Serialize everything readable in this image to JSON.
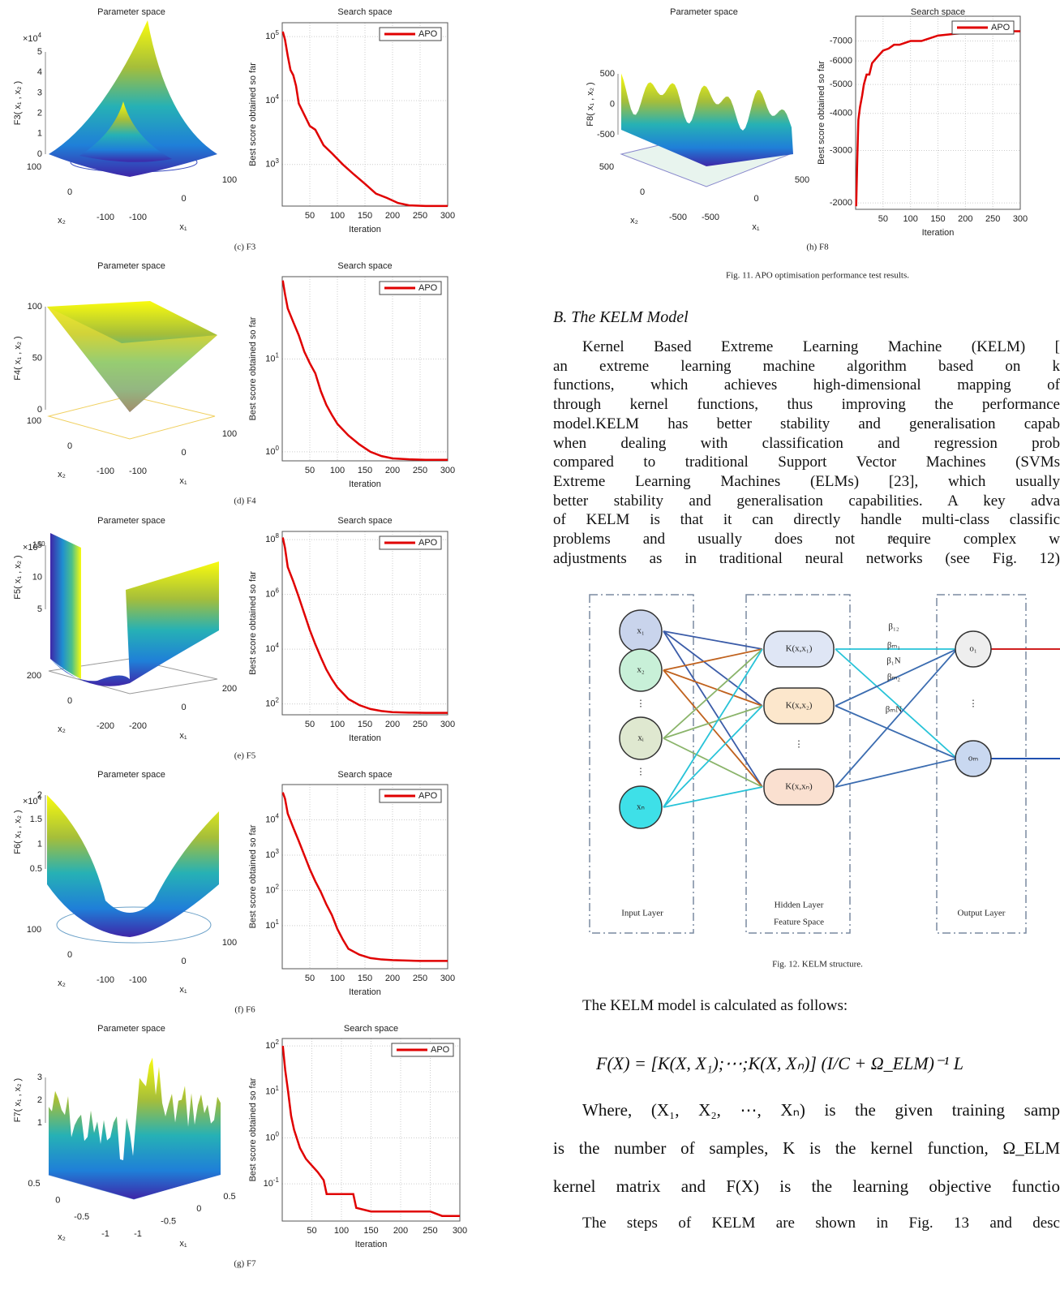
{
  "figures": [
    {
      "caption": "(c) F3",
      "surface": {
        "title": "Parameter space",
        "zlabel": "F3( x₁ , x₂ )",
        "multiplier": "×10^4",
        "zticks": [
          0,
          1,
          2,
          3,
          4,
          5
        ],
        "x1label": "x₁",
        "x2label": "x₂",
        "x1ticks": [
          -100,
          0,
          100
        ],
        "x2ticks": [
          100,
          0,
          -100
        ]
      },
      "chart_data": {
        "type": "line",
        "title": "Search space",
        "xlabel": "Iteration",
        "ylabel": "Best score obtained so far",
        "log_y": true,
        "grid": true,
        "legend": "upper right",
        "xlim": [
          0,
          300
        ],
        "ylim": [
          224,
          165000
        ],
        "xticks": [
          50,
          100,
          150,
          200,
          250,
          300
        ],
        "yticks": [
          {
            "value": 1000,
            "label": "10^3"
          },
          {
            "value": 10000,
            "label": "10^4"
          },
          {
            "value": 100000,
            "label": "10^5"
          }
        ],
        "series": [
          {
            "name": "APO",
            "color": "#e00000",
            "x": [
              1,
              5,
              10,
              15,
              20,
              25,
              30,
              40,
              50,
              60,
              75,
              90,
              110,
              130,
              150,
              170,
              190,
              210,
              230,
              260,
              300
            ],
            "values": [
              120000,
              90000,
              50000,
              30000,
              25000,
              17000,
              9000,
              6000,
              4000,
              3500,
              2000,
              1500,
              1000,
              700,
              500,
              350,
              300,
              250,
              230,
              225,
              225
            ]
          }
        ]
      }
    },
    {
      "caption": "(d) F4",
      "surface": {
        "title": "Parameter space",
        "zlabel": "F4( x₁ , x₂ )",
        "zticks": [
          0,
          50,
          100
        ],
        "x1label": "x₁",
        "x2label": "x₂",
        "x1ticks": [
          -100,
          0,
          100
        ],
        "x2ticks": [
          100,
          0,
          -100
        ]
      },
      "chart_data": {
        "type": "line",
        "title": "Search space",
        "xlabel": "Iteration",
        "ylabel": "Best score obtained so far",
        "log_y": true,
        "grid": true,
        "legend": "upper right",
        "xlim": [
          0,
          300
        ],
        "ylim": [
          0.8,
          77
        ],
        "xticks": [
          50,
          100,
          150,
          200,
          250,
          300
        ],
        "yticks": [
          {
            "value": 1,
            "label": "10^0"
          },
          {
            "value": 10,
            "label": "10^1"
          }
        ],
        "series": [
          {
            "name": "APO",
            "color": "#e00000",
            "x": [
              1,
              5,
              10,
              20,
              30,
              40,
              50,
              60,
              70,
              80,
              90,
              100,
              120,
              140,
              160,
              180,
              200,
              230,
              260,
              300
            ],
            "values": [
              70,
              50,
              35,
              25,
              18,
              12,
              9,
              7,
              4.5,
              3.2,
              2.5,
              2,
              1.5,
              1.2,
              1,
              0.9,
              0.85,
              0.83,
              0.82,
              0.82
            ]
          }
        ]
      }
    },
    {
      "caption": "(e) F5",
      "surface": {
        "title": "Parameter space",
        "zlabel": "F5( x₁ , x₂ )",
        "multiplier": "×10^10",
        "zticks": [
          5,
          10,
          15
        ],
        "x1label": "x₁",
        "x2label": "x₂",
        "x1ticks": [
          -200,
          0,
          200
        ],
        "x2ticks": [
          200,
          0,
          -200
        ]
      },
      "chart_data": {
        "type": "line",
        "title": "Search space",
        "xlabel": "Iteration",
        "ylabel": "Best score obtained so far",
        "log_y": true,
        "grid": true,
        "legend": "upper right",
        "xlim": [
          0,
          300
        ],
        "ylim": [
          40,
          200000000
        ],
        "xticks": [
          50,
          100,
          150,
          200,
          250,
          300
        ],
        "yticks": [
          {
            "value": 100,
            "label": "10^2"
          },
          {
            "value": 10000,
            "label": "10^4"
          },
          {
            "value": 1000000,
            "label": "10^6"
          },
          {
            "value": 100000000,
            "label": "10^8"
          }
        ],
        "series": [
          {
            "name": "APO",
            "color": "#e00000",
            "x": [
              1,
              5,
              10,
              20,
              30,
              40,
              50,
              60,
              70,
              80,
              90,
              100,
              120,
              140,
              160,
              180,
              200,
              230,
              260,
              300
            ],
            "values": [
              120000000,
              50000000,
              10000000,
              3000000,
              800000,
              200000,
              50000,
              15000,
              5000,
              1800,
              800,
              400,
              150,
              90,
              65,
              55,
              50,
              48,
              47,
              47
            ]
          }
        ]
      }
    },
    {
      "caption": "(f) F6",
      "surface": {
        "title": "Parameter space",
        "zlabel": "F6( x₁ , x₂ )",
        "multiplier": "×10^4",
        "zticks": [
          0.5,
          1,
          1.5,
          2
        ],
        "x1label": "x₁",
        "x2label": "x₂",
        "x1ticks": [
          -100,
          0,
          100
        ],
        "x2ticks": [
          100,
          0,
          -100
        ]
      },
      "chart_data": {
        "type": "line",
        "title": "Search space",
        "xlabel": "Iteration",
        "ylabel": "Best score obtained so far",
        "log_y": true,
        "grid": true,
        "legend": "upper right",
        "xlim": [
          0,
          300
        ],
        "ylim": [
          0.6,
          100000
        ],
        "xticks": [
          50,
          100,
          150,
          200,
          250,
          300
        ],
        "yticks": [
          {
            "value": 10,
            "label": "10^1"
          },
          {
            "value": 100,
            "label": "10^2"
          },
          {
            "value": 1000,
            "label": "10^3"
          },
          {
            "value": 10000,
            "label": "10^4"
          }
        ],
        "series": [
          {
            "name": "APO",
            "color": "#e00000",
            "x": [
              1,
              5,
              10,
              20,
              30,
              40,
              50,
              60,
              70,
              80,
              90,
              100,
              110,
              120,
              140,
              160,
              180,
              200,
              250,
              300
            ],
            "values": [
              60000,
              40000,
              15000,
              6000,
              2500,
              1000,
              400,
              180,
              90,
              40,
              20,
              8,
              4,
              2.2,
              1.5,
              1.2,
              1.1,
              1.05,
              1,
              1
            ]
          }
        ]
      }
    },
    {
      "caption": "(g) F7",
      "surface": {
        "title": "Parameter space",
        "zlabel": "F7( x₁ , x₂ )",
        "zticks": [
          1,
          2,
          3
        ],
        "x1label": "x₁",
        "x2label": "x₂",
        "x1ticks": [
          -1,
          -0.5,
          0,
          0.5
        ],
        "x2ticks": [
          0.5,
          0,
          -0.5,
          -1
        ]
      },
      "chart_data": {
        "type": "line",
        "title": "Search space",
        "xlabel": "Iteration",
        "ylabel": "Best score obtained so far",
        "log_y": true,
        "grid": true,
        "legend": "upper right",
        "xlim": [
          0,
          300
        ],
        "ylim": [
          0.0155,
          145
        ],
        "xticks": [
          50,
          100,
          150,
          200,
          250,
          300
        ],
        "yticks": [
          {
            "value": 0.1,
            "label": "10^-1"
          },
          {
            "value": 1,
            "label": "10^0"
          },
          {
            "value": 10,
            "label": "10^1"
          },
          {
            "value": 100,
            "label": "10^2"
          }
        ],
        "series": [
          {
            "name": "APO",
            "color": "#e00000",
            "x": [
              1,
              5,
              10,
              15,
              20,
              30,
              40,
              50,
              60,
              70,
              75,
              100,
              120,
              125,
              150,
              200,
              250,
              270,
              300
            ],
            "values": [
              100,
              30,
              10,
              3,
              1.5,
              0.6,
              0.35,
              0.25,
              0.18,
              0.12,
              0.06,
              0.06,
              0.06,
              0.03,
              0.025,
              0.025,
              0.025,
              0.02,
              0.02
            ]
          }
        ]
      }
    },
    {
      "caption": "(h) F8",
      "surface": {
        "title": "Parameter space",
        "zlabel": "F8( x₁ , x₂ )",
        "zticks": [
          -500,
          0,
          500
        ],
        "x1label": "x₁",
        "x2label": "x₂",
        "x1ticks": [
          -500,
          0,
          500
        ],
        "x2ticks": [
          500,
          0,
          -500
        ]
      },
      "chart_data": {
        "type": "line",
        "title": "Search space",
        "xlabel": "Iteration",
        "ylabel": "Best score obtained so far",
        "log_y": true,
        "grid": true,
        "legend": "upper right",
        "xlim": [
          0,
          300
        ],
        "ylim": [
          -1904,
          -8480
        ],
        "xticks": [
          50,
          100,
          150,
          200,
          250,
          300
        ],
        "yticks": [
          -7000,
          -6000,
          -5000,
          -4000,
          -3000,
          -2000
        ],
        "series": [
          {
            "name": "APO",
            "color": "#e00000",
            "x": [
              1,
              3,
              5,
              8,
              12,
              15,
              20,
              25,
              30,
              40,
              50,
              60,
              70,
              80,
              100,
              120,
              150,
              180,
              220,
              260,
              300
            ],
            "values": [
              -1950,
              -2800,
              -3800,
              -4200,
              -4600,
              -5000,
              -5400,
              -5400,
              -5900,
              -6200,
              -6500,
              -6600,
              -6800,
              -6800,
              -7000,
              -7000,
              -7300,
              -7400,
              -7500,
              -7550,
              -7550
            ]
          }
        ]
      }
    }
  ],
  "fig11_caption": "Fig. 11. APO optimisation performance test results.",
  "section": {
    "heading": "B.  The KELM Model",
    "paragraph": [
      "Kernel Based Extreme Learning Machine (KELM) [",
      "an extreme learning machine algorithm based on k",
      "functions, which achieves high-dimensional mapping of",
      "through kernel functions, thus improving the performance",
      "model.KELM has better stability and generalisation capab",
      "when dealing with classification and regression prob",
      "compared to traditional Support Vector Machines (SVMs",
      "Extreme Learning Machines (ELMs) [23], which usually",
      "better stability and generalisation capabilities. A key adva",
      "of KELM is that it can directly handle multi-class classific",
      "problems and usually does not require complex w",
      "adjustments as in traditional neural networks (see Fig. 12)"
    ]
  },
  "diagram": {
    "inputs": [
      "x₁",
      "x₂",
      "⋮",
      "xᵢ",
      "⋮",
      "xₙ"
    ],
    "hidden": [
      "K(x,x₁)",
      "K(x,x₂)",
      "⋮",
      "K(x,xₙ)"
    ],
    "outputs": [
      "o₁",
      "⋮",
      "oₘ"
    ],
    "weights": [
      "β₁₁",
      "β₁₂",
      "βₘ₁",
      "β₁N",
      "βₘ₂",
      "βₘN"
    ],
    "input_layer": "Input Layer",
    "hidden_layer": [
      "Hidden Layer",
      "Feature Space"
    ],
    "output_layer": "Output Layer"
  },
  "fig12_caption": "Fig. 12. KELM structure.",
  "intro": "The KELM model is calculated as follows:",
  "equation": "F(X) = [K(X, X₁);⋯;K(X, Xₙ)] (I/C + Ω_ELM)⁻¹ L",
  "after": [
    "Where, (X₁, X₂, ⋯, Xₙ) is the given training samp",
    "is the number of samples, K is the kernel function, Ω_ELM",
    "kernel matrix and F(X) is the learning objective functio",
    "The steps of KELM are shown in Fig. 13 and desc"
  ]
}
